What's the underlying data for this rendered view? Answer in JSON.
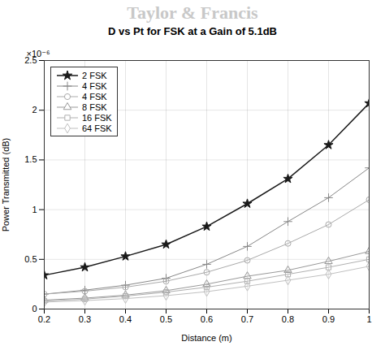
{
  "chart_data": {
    "type": "line",
    "title": "D vs Pt for FSK at a Gain of 5.1dB",
    "x_label": "Distance (m)",
    "y_label": "Power Transmitted (dB)",
    "annotations": [
      "Taylor & Francis",
      "×10⁻⁶"
    ],
    "x": [
      0.2,
      0.3,
      0.4,
      0.5,
      0.6,
      0.7,
      0.8,
      0.9,
      1.0
    ],
    "xlim": [
      0.2,
      1.0
    ],
    "xticks": [
      0.2,
      0.3,
      0.4,
      0.5,
      0.6,
      0.7,
      0.8,
      0.9,
      1
    ],
    "ylim": [
      0,
      2.5e-06
    ],
    "yticks": [
      0,
      {
        "value": 5e-07,
        "label": "0.5"
      },
      {
        "value": 1e-06,
        "label": "1"
      },
      {
        "value": 1.5e-06,
        "label": "1.5"
      },
      {
        "value": 2e-06,
        "label": "2"
      },
      {
        "value": 2.5e-06,
        "label": "2.5"
      }
    ],
    "grid": true,
    "legend": "upper left",
    "series": [
      {
        "name": "2 FSK",
        "color": "#1a1a1a",
        "marker": "star",
        "values": [
          3.4e-07,
          4.2e-07,
          5.3e-07,
          6.5e-07,
          8.3e-07,
          1.06e-06,
          1.31e-06,
          1.65e-06,
          2.07e-06
        ]
      },
      {
        "name": "4 FSK",
        "color": "#888888",
        "marker": "plus",
        "values": [
          1.5e-07,
          1.9e-07,
          2.4e-07,
          3.1e-07,
          4.5e-07,
          6.3e-07,
          8.8e-07,
          1.12e-06,
          1.42e-06
        ]
      },
      {
        "name": "4 FSK",
        "color": "#aaaaaa",
        "marker": "circle",
        "values": [
          1.5e-07,
          1.8e-07,
          2.2e-07,
          2.8e-07,
          3.7e-07,
          4.9e-07,
          6.6e-07,
          8.5e-07,
          1.1e-06
        ]
      },
      {
        "name": "8 FSK",
        "color": "#999999",
        "marker": "triangle",
        "values": [
          9e-08,
          1.1e-07,
          1.4e-07,
          1.85e-07,
          2.5e-07,
          3.3e-07,
          3.9e-07,
          4.8e-07,
          5.8e-07
        ]
      },
      {
        "name": "16 FSK",
        "color": "#b0b0b0",
        "marker": "square",
        "values": [
          8e-08,
          1e-07,
          1.3e-07,
          1.7e-07,
          2.2e-07,
          2.8e-07,
          3.5e-07,
          4.2e-07,
          5e-07
        ]
      },
      {
        "name": "64 FSK",
        "color": "#c0c0c0",
        "marker": "diamond",
        "values": [
          7e-08,
          8.5e-08,
          1.05e-07,
          1.35e-07,
          1.75e-07,
          2.3e-07,
          2.9e-07,
          3.5e-07,
          4.3e-07
        ]
      }
    ]
  }
}
